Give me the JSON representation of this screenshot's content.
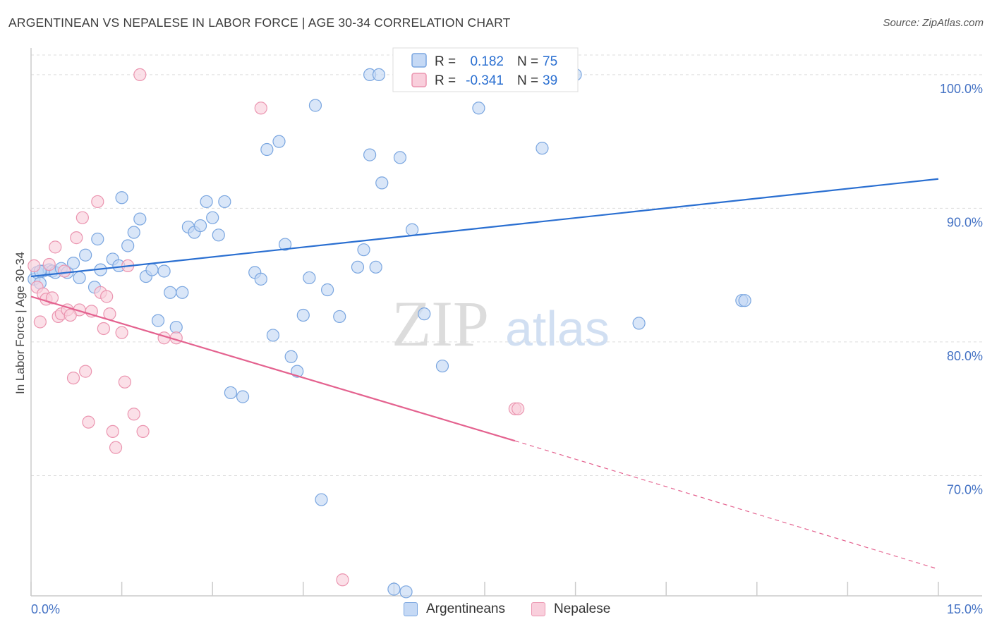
{
  "title": "ARGENTINEAN VS NEPALESE IN LABOR FORCE | AGE 30-34 CORRELATION CHART",
  "source": "Source: ZipAtlas.com",
  "watermark": {
    "zip": "ZIP",
    "atlas": "atlas"
  },
  "colors": {
    "blue_fill": "#c5d9f5",
    "blue_stroke": "#7aa6e0",
    "blue_line": "#2a6fd1",
    "pink_fill": "#f9cfdc",
    "pink_stroke": "#eb95b0",
    "pink_line": "#e4628f",
    "grid": "#dddddd",
    "tick_text_blue": "#4472c4",
    "axis": "#cccccc"
  },
  "stats_legend": {
    "rows": [
      {
        "r_label": "R =",
        "r_value": "0.182",
        "n_label": "N =",
        "n_value": "75"
      },
      {
        "r_label": "R =",
        "r_value": "-0.341",
        "n_label": "N =",
        "n_value": "39"
      }
    ]
  },
  "bottom_legend": {
    "series1": "Argentineans",
    "series2": "Nepalese"
  },
  "chart_data": {
    "type": "scatter",
    "title": "ARGENTINEAN VS NEPALESE IN LABOR FORCE | AGE 30-34 CORRELATION CHART",
    "ylabel": "In Labor Force | Age 30-34",
    "xlabel": "",
    "xlim": [
      0,
      15
    ],
    "ylim": [
      61,
      102
    ],
    "x_tick_labels": [
      {
        "value": 0,
        "label": "0.0%"
      },
      {
        "value": 15,
        "label": "15.0%"
      }
    ],
    "y_tick_labels": [
      {
        "value": 100,
        "label": "100.0%"
      },
      {
        "value": 90,
        "label": "90.0%"
      },
      {
        "value": 80,
        "label": "80.0%"
      },
      {
        "value": 70,
        "label": "70.0%"
      }
    ],
    "grid": true,
    "legend_position": "top-center",
    "series": [
      {
        "name": "Argentineans",
        "color": "#7aa6e0",
        "r": 0.182,
        "n": 75,
        "trend": {
          "x": [
            0.0,
            15.0
          ],
          "y": [
            84.9,
            92.2
          ]
        },
        "points": [
          [
            0.05,
            84.7
          ],
          [
            0.1,
            85.2
          ],
          [
            0.15,
            84.4
          ],
          [
            0.2,
            85.3
          ],
          [
            0.3,
            85.4
          ],
          [
            0.35,
            85.3
          ],
          [
            0.4,
            85.2
          ],
          [
            0.5,
            85.5
          ],
          [
            0.6,
            85.2
          ],
          [
            0.7,
            85.9
          ],
          [
            0.8,
            84.8
          ],
          [
            0.9,
            86.5
          ],
          [
            1.05,
            84.1
          ],
          [
            1.1,
            87.7
          ],
          [
            1.15,
            85.4
          ],
          [
            1.35,
            86.2
          ],
          [
            1.45,
            85.7
          ],
          [
            1.5,
            90.8
          ],
          [
            1.6,
            87.2
          ],
          [
            1.7,
            88.2
          ],
          [
            1.8,
            89.2
          ],
          [
            1.9,
            84.9
          ],
          [
            2.0,
            85.4
          ],
          [
            2.1,
            81.6
          ],
          [
            2.2,
            85.3
          ],
          [
            2.3,
            83.7
          ],
          [
            2.4,
            81.1
          ],
          [
            2.5,
            83.7
          ],
          [
            2.6,
            88.6
          ],
          [
            2.7,
            88.2
          ],
          [
            2.8,
            88.7
          ],
          [
            2.9,
            90.5
          ],
          [
            3.0,
            89.3
          ],
          [
            3.1,
            88.0
          ],
          [
            3.2,
            90.5
          ],
          [
            3.3,
            76.2
          ],
          [
            3.5,
            75.9
          ],
          [
            3.7,
            85.2
          ],
          [
            3.8,
            84.7
          ],
          [
            3.9,
            94.4
          ],
          [
            4.0,
            80.5
          ],
          [
            4.1,
            95.0
          ],
          [
            4.2,
            87.3
          ],
          [
            4.3,
            78.9
          ],
          [
            4.4,
            77.8
          ],
          [
            4.5,
            82.0
          ],
          [
            4.6,
            84.8
          ],
          [
            4.7,
            97.7
          ],
          [
            4.8,
            68.2
          ],
          [
            4.9,
            83.9
          ],
          [
            5.1,
            81.9
          ],
          [
            5.4,
            85.6
          ],
          [
            5.5,
            86.9
          ],
          [
            5.6,
            94.0
          ],
          [
            5.7,
            85.6
          ],
          [
            5.8,
            91.9
          ],
          [
            6.0,
            61.5
          ],
          [
            6.1,
            93.8
          ],
          [
            6.2,
            61.3
          ],
          [
            6.3,
            88.4
          ],
          [
            6.5,
            82.1
          ],
          [
            6.6,
            100.0
          ],
          [
            6.8,
            78.2
          ],
          [
            7.1,
            100.0
          ],
          [
            7.4,
            97.5
          ],
          [
            8.2,
            100.0
          ],
          [
            8.45,
            94.5
          ],
          [
            8.8,
            100.0
          ],
          [
            9.0,
            100.0
          ],
          [
            10.05,
            81.4
          ],
          [
            11.75,
            83.1
          ],
          [
            11.8,
            83.1
          ],
          [
            0.15,
            85.3
          ],
          [
            5.6,
            100.0
          ],
          [
            5.75,
            100.0
          ]
        ]
      },
      {
        "name": "Nepalese",
        "color": "#eb95b0",
        "r": -0.341,
        "n": 39,
        "trend_solid": {
          "x": [
            0.0,
            8.0
          ],
          "y": [
            83.4,
            72.6
          ]
        },
        "trend_dashed": {
          "x": [
            8.0,
            15.0
          ],
          "y": [
            72.6,
            63.0
          ]
        },
        "points": [
          [
            0.05,
            85.7
          ],
          [
            0.1,
            84.1
          ],
          [
            0.15,
            81.5
          ],
          [
            0.2,
            83.6
          ],
          [
            0.25,
            83.2
          ],
          [
            0.3,
            85.8
          ],
          [
            0.35,
            83.3
          ],
          [
            0.4,
            87.1
          ],
          [
            0.45,
            81.9
          ],
          [
            0.5,
            82.1
          ],
          [
            0.55,
            85.3
          ],
          [
            0.6,
            82.4
          ],
          [
            0.7,
            77.3
          ],
          [
            0.75,
            87.8
          ],
          [
            0.8,
            82.4
          ],
          [
            0.85,
            89.3
          ],
          [
            0.9,
            77.8
          ],
          [
            0.95,
            74.0
          ],
          [
            1.0,
            82.3
          ],
          [
            1.1,
            90.5
          ],
          [
            1.15,
            83.7
          ],
          [
            1.2,
            81.0
          ],
          [
            1.25,
            83.4
          ],
          [
            1.3,
            82.1
          ],
          [
            1.35,
            73.3
          ],
          [
            1.4,
            72.1
          ],
          [
            1.5,
            80.7
          ],
          [
            1.55,
            77.0
          ],
          [
            1.6,
            85.7
          ],
          [
            1.7,
            74.6
          ],
          [
            1.8,
            100.0
          ],
          [
            1.85,
            73.3
          ],
          [
            2.2,
            80.3
          ],
          [
            2.4,
            80.3
          ],
          [
            3.8,
            97.5
          ],
          [
            5.15,
            62.2
          ],
          [
            8.0,
            75.0
          ],
          [
            8.05,
            75.0
          ],
          [
            0.65,
            82.0
          ]
        ]
      }
    ]
  }
}
